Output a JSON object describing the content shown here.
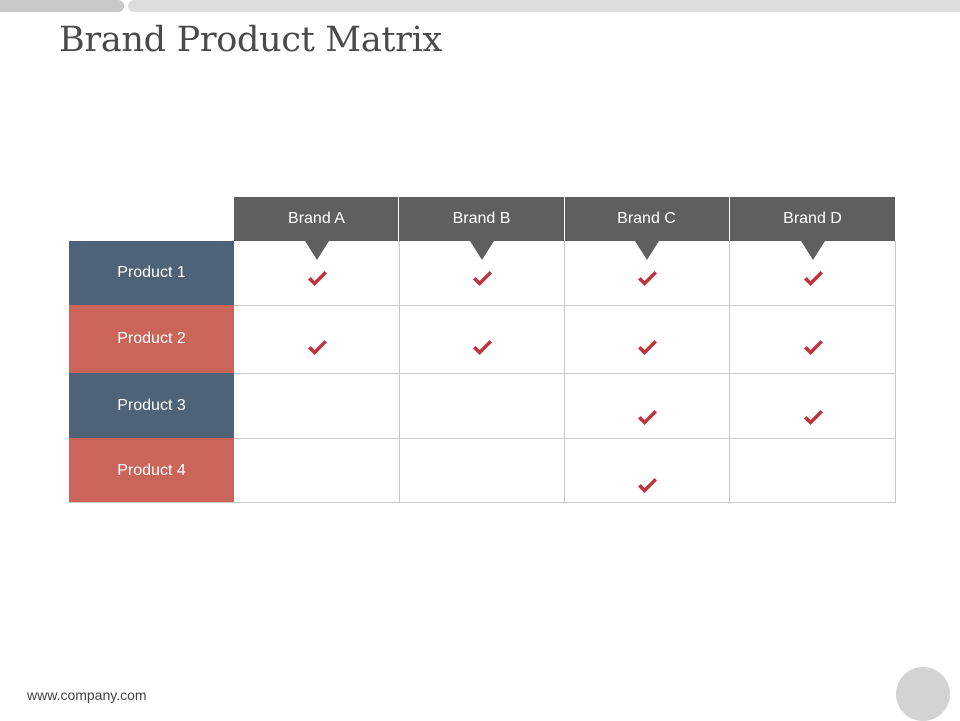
{
  "slide": {
    "title": "Brand Product Matrix",
    "footer_url": "www.company.com"
  },
  "matrix": {
    "brands": [
      "Brand A",
      "Brand B",
      "Brand C",
      "Brand D"
    ],
    "products": [
      "Product 1",
      "Product 2",
      "Product 3",
      "Product 4"
    ],
    "checks": [
      [
        true,
        true,
        true,
        true
      ],
      [
        true,
        true,
        true,
        true
      ],
      [
        false,
        false,
        true,
        true
      ],
      [
        false,
        false,
        true,
        false
      ]
    ]
  },
  "colors": {
    "header_gray": "#5f5f5f",
    "product_dark": "#4e6377",
    "product_red": "#cc6559",
    "check_red": "#c0333d"
  }
}
